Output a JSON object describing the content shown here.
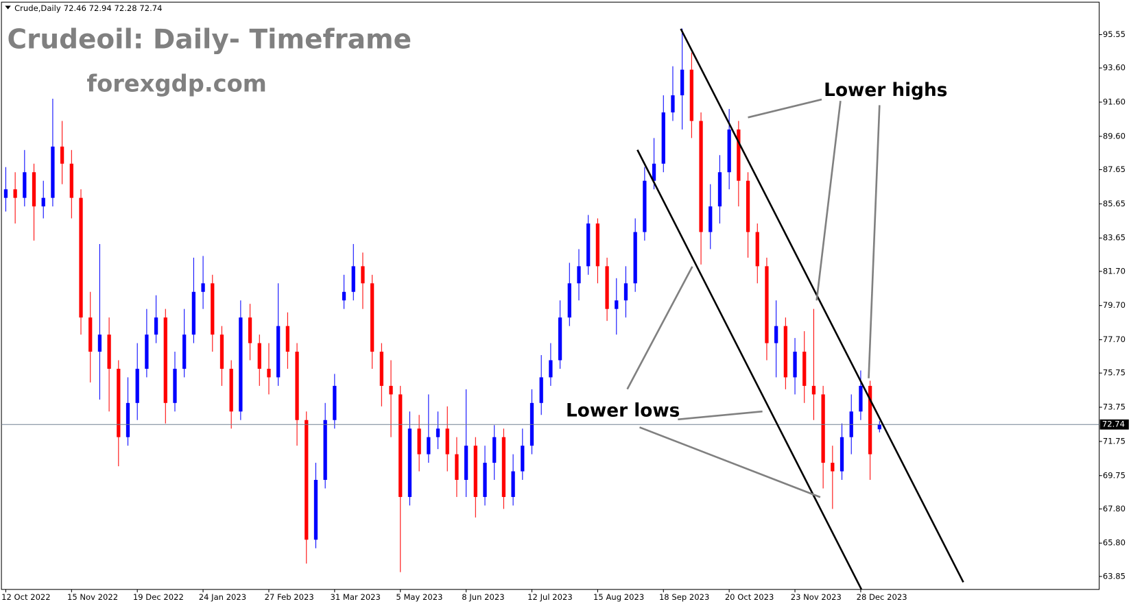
{
  "chart_data": {
    "type": "candlestick",
    "symbol": "Crude,Daily",
    "title": "Crudeoil: Daily- Timeframe",
    "subtitle": "forexgdp.com",
    "annotations": [
      "Lower highs",
      "Lower lows"
    ],
    "up_color": "#0000ff",
    "down_color": "#ff0000",
    "categories": [
      "12 Oct 2022",
      null,
      null,
      null,
      null,
      null,
      null,
      "15 Nov 2022",
      null,
      null,
      null,
      null,
      null,
      null,
      "19 Dec 2022",
      null,
      null,
      null,
      null,
      null,
      null,
      "24 Jan 2023",
      null,
      null,
      null,
      null,
      null,
      null,
      "27 Feb 2023",
      null,
      null,
      null,
      null,
      null,
      null,
      "31 Mar 2023",
      null,
      null,
      null,
      null,
      null,
      null,
      "5 May 2023",
      null,
      null,
      null,
      null,
      null,
      null,
      "8 Jun 2023",
      null,
      null,
      null,
      null,
      null,
      null,
      "12 Jul 2023",
      null,
      null,
      null,
      null,
      null,
      null,
      "15 Aug 2023",
      null,
      null,
      null,
      null,
      null,
      null,
      "18 Sep 2023",
      null,
      null,
      null,
      null,
      null,
      null,
      "20 Oct 2023",
      null,
      null,
      null,
      null,
      null,
      null,
      "23 Nov 2023",
      null,
      null,
      null,
      null,
      null,
      null,
      "28 Dec 2023",
      null,
      null
    ],
    "open": [
      86,
      86.5,
      86,
      87.5,
      85.5,
      86,
      89,
      88,
      86,
      79,
      77,
      78,
      76,
      72,
      74,
      76,
      78,
      79,
      74,
      76,
      78,
      80.5,
      81,
      78,
      76,
      73.5,
      79,
      77.5,
      76,
      75.5,
      78.5,
      77,
      73,
      66,
      69.5,
      73,
      80,
      80.5,
      82,
      81,
      77,
      75,
      74.5,
      68.5,
      72.5,
      71,
      72,
      72.5,
      71,
      69.5,
      71.5,
      68.5,
      70.5,
      72,
      68.5,
      70,
      71.5,
      74,
      75.5,
      76.5,
      79,
      81,
      82,
      84.5,
      82,
      79.5,
      80,
      81,
      84,
      87,
      88,
      91,
      92,
      93.5,
      90.5,
      84,
      85.5,
      87.5,
      90,
      87,
      84,
      82,
      77.5,
      78.5,
      75.5,
      77,
      75,
      74.5,
      70.5,
      70,
      72,
      73.5,
      75,
      72.46
    ],
    "high": [
      87.8,
      87.5,
      88.8,
      88,
      87,
      91.8,
      90.5,
      88.8,
      86.5,
      80.5,
      83.3,
      79,
      76.5,
      75.5,
      77.5,
      79.5,
      80.3,
      79.5,
      77,
      79.5,
      82.5,
      82.6,
      81.5,
      78.5,
      76.5,
      80,
      79.8,
      78,
      77.5,
      81,
      79.3,
      77.5,
      73.5,
      70.5,
      74,
      75.7,
      81.5,
      83.3,
      82.8,
      81.5,
      77.5,
      76.5,
      75,
      73.5,
      73.3,
      74.5,
      73.5,
      73.8,
      72,
      74.8,
      72,
      71.5,
      72.7,
      72.5,
      71,
      72.5,
      74.8,
      76.8,
      77.5,
      80,
      82.2,
      83,
      85,
      84.8,
      82.5,
      81.3,
      82,
      84.8,
      87.8,
      89.5,
      92,
      93.7,
      95.9,
      94.5,
      91,
      86.8,
      88.5,
      91.2,
      90.5,
      87.5,
      84.5,
      82.5,
      80,
      79,
      77.8,
      78.2,
      79.5,
      75,
      71.5,
      72.8,
      74.5,
      75.9,
      75.3,
      72.94
    ],
    "low": [
      85.2,
      84.5,
      85.5,
      83.5,
      84.8,
      85.5,
      86.8,
      84.8,
      78,
      75.2,
      74.2,
      73.5,
      70.3,
      71.5,
      73,
      75.5,
      77.5,
      72.8,
      73.5,
      75.5,
      77.5,
      79.5,
      77,
      75,
      72.5,
      73,
      76.5,
      75,
      74.5,
      75,
      76,
      71.5,
      64.6,
      65.5,
      69,
      72.5,
      79.5,
      80,
      79.5,
      76,
      73.8,
      72,
      64.1,
      68,
      70,
      70.5,
      71.3,
      70,
      68.5,
      68.5,
      67.3,
      68,
      69.5,
      67.8,
      68,
      69.5,
      71,
      73.3,
      75,
      76,
      78.5,
      80,
      81.5,
      81,
      78.8,
      78,
      79,
      80.5,
      83.5,
      86.5,
      87.5,
      90.5,
      90,
      89.5,
      82.1,
      83,
      84.5,
      86.5,
      85.5,
      82.5,
      81,
      76.5,
      75.5,
      74.8,
      74.5,
      74,
      73,
      69,
      67.8,
      69.5,
      71,
      73,
      69.5,
      72.28
    ],
    "close": [
      86.5,
      86,
      87.5,
      85.5,
      86,
      89,
      88,
      86,
      79,
      77,
      78,
      76,
      72,
      74,
      76,
      78,
      79,
      74,
      76,
      78,
      80.5,
      81,
      78,
      76,
      73.5,
      79,
      77.5,
      76,
      75.5,
      78.5,
      77,
      73,
      66,
      69.5,
      73,
      75,
      80.5,
      82,
      81,
      77,
      75,
      74.5,
      68.5,
      72.5,
      71,
      72,
      72.5,
      71,
      69.5,
      71.5,
      68.5,
      70.5,
      72,
      68.5,
      70,
      71.5,
      74,
      75.5,
      76.5,
      79,
      81,
      82,
      84.5,
      82,
      79.5,
      80,
      81,
      84,
      87,
      88,
      91,
      92,
      93.5,
      90.5,
      84,
      85.5,
      87.5,
      90,
      87,
      84,
      82,
      77.5,
      78.5,
      75.5,
      77,
      75,
      74.5,
      70.5,
      70,
      72,
      73.5,
      75,
      71,
      72.74
    ],
    "ylim": [
      63.09,
      97.45
    ],
    "yticks": [
      95.55,
      {
        "value": 93.6,
        "label": "93.60"
      },
      {
        "value": 91.6,
        "label": "91.60"
      },
      {
        "value": 89.6,
        "label": "89.60"
      },
      87.65,
      85.65,
      83.65,
      {
        "value": 81.7,
        "label": "81.70"
      },
      {
        "value": 79.7,
        "label": "79.70"
      },
      {
        "value": 77.7,
        "label": "77.70"
      },
      75.75,
      73.75,
      71.75,
      69.75,
      {
        "value": 67.8,
        "label": "67.80"
      },
      {
        "value": 65.8,
        "label": "65.80"
      },
      63.85
    ]
  }
}
